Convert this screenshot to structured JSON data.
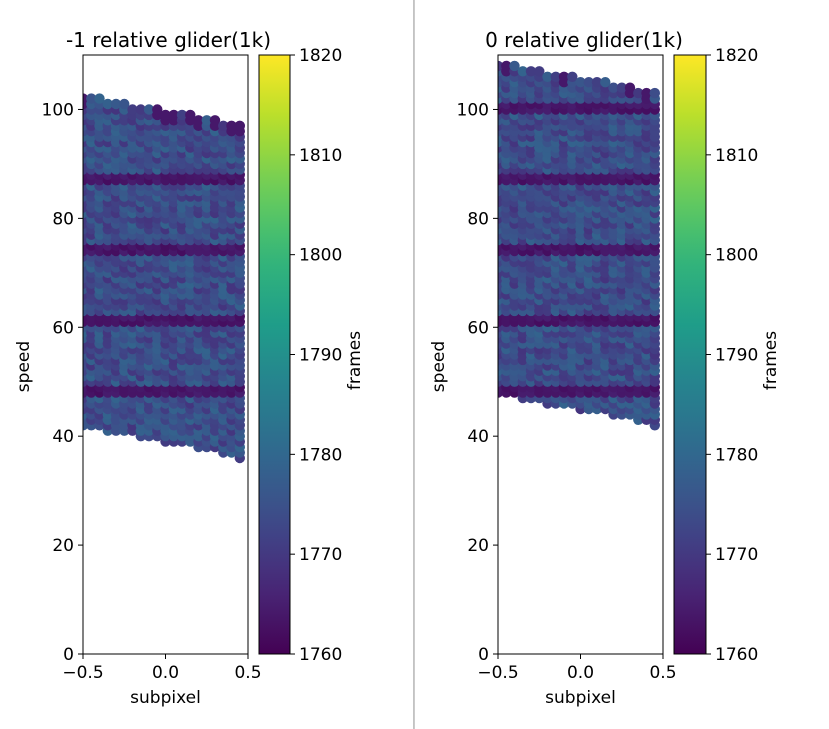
{
  "chart_data": [
    {
      "type": "scatter",
      "title": "-1 relative glider(1k)",
      "xlabel": "subpixel",
      "ylabel": "speed",
      "xlim": [
        -0.5,
        0.5
      ],
      "ylim": [
        0,
        110
      ],
      "xticks": [
        -0.5,
        0.0,
        0.5
      ],
      "xtick_labels": [
        "−0.5",
        "0.0",
        "0.5"
      ],
      "yticks": [
        0,
        20,
        40,
        60,
        80,
        100
      ],
      "ytick_labels": [
        "0",
        "20",
        "40",
        "60",
        "80",
        "100"
      ],
      "x_columns": [
        -0.5,
        -0.45,
        -0.4,
        -0.35,
        -0.3,
        -0.25,
        -0.2,
        -0.15,
        -0.1,
        -0.05,
        0.0,
        0.05,
        0.1,
        0.15,
        0.2,
        0.25,
        0.3,
        0.35,
        0.4,
        0.45
      ],
      "y_max_by_column": [
        102,
        102,
        102,
        101,
        101,
        101,
        100,
        100,
        100,
        100,
        99,
        99,
        99,
        99,
        98,
        98,
        98,
        97,
        97,
        97
      ],
      "y_min_by_column": [
        42,
        42,
        42,
        41,
        41,
        41,
        41,
        40,
        40,
        40,
        39,
        39,
        39,
        39,
        38,
        38,
        38,
        37,
        37,
        36
      ],
      "speed_step": 1,
      "low_frame_bands": [
        48.5,
        61.5,
        74.5,
        87.5
      ],
      "value_label": "frames",
      "typical_frames": 1774,
      "band_frames": 1762,
      "colorbar": {
        "label": "frames",
        "range": [
          1760,
          1820
        ],
        "ticks": [
          1760,
          1770,
          1780,
          1790,
          1800,
          1810,
          1820
        ],
        "tick_labels": [
          "1760",
          "1770",
          "1780",
          "1790",
          "1800",
          "1810",
          "1820"
        ],
        "colormap": "viridis"
      },
      "grid": false
    },
    {
      "type": "scatter",
      "title": "0 relative glider(1k)",
      "xlabel": "subpixel",
      "ylabel": "speed",
      "xlim": [
        -0.5,
        0.5
      ],
      "ylim": [
        0,
        110
      ],
      "xticks": [
        -0.5,
        0.0,
        0.5
      ],
      "xtick_labels": [
        "−0.5",
        "0.0",
        "0.5"
      ],
      "yticks": [
        0,
        20,
        40,
        60,
        80,
        100
      ],
      "ytick_labels": [
        "0",
        "20",
        "40",
        "60",
        "80",
        "100"
      ],
      "x_columns": [
        -0.5,
        -0.45,
        -0.4,
        -0.35,
        -0.3,
        -0.25,
        -0.2,
        -0.15,
        -0.1,
        -0.05,
        0.0,
        0.05,
        0.1,
        0.15,
        0.2,
        0.25,
        0.3,
        0.35,
        0.4,
        0.45
      ],
      "y_max_by_column": [
        108,
        108,
        108,
        107,
        107,
        107,
        106,
        106,
        106,
        106,
        105,
        105,
        105,
        105,
        104,
        104,
        104,
        103,
        103,
        103
      ],
      "y_min_by_column": [
        48,
        48,
        48,
        47,
        47,
        47,
        46,
        46,
        46,
        46,
        45,
        45,
        45,
        45,
        44,
        44,
        44,
        43,
        43,
        42
      ],
      "speed_step": 1,
      "low_frame_bands": [
        48.5,
        61.5,
        74.5,
        87.5,
        100.5
      ],
      "value_label": "frames",
      "typical_frames": 1774,
      "band_frames": 1762,
      "colorbar": {
        "label": "frames",
        "range": [
          1760,
          1820
        ],
        "ticks": [
          1760,
          1770,
          1780,
          1790,
          1800,
          1810,
          1820
        ],
        "tick_labels": [
          "1760",
          "1770",
          "1780",
          "1790",
          "1800",
          "1810",
          "1820"
        ],
        "colormap": "viridis"
      },
      "grid": false
    }
  ]
}
